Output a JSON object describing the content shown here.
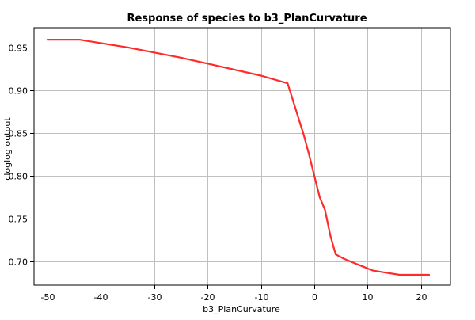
{
  "chart_data": {
    "type": "line",
    "title": "Response of species to b3_PlanCurvature",
    "xlabel": "b3_PlanCurvature",
    "ylabel": "cloglog output",
    "xlim": [
      -52.5,
      25.5
    ],
    "ylim": [
      0.672,
      0.973
    ],
    "x_ticks": [
      -50,
      -40,
      -30,
      -20,
      -10,
      0,
      10,
      20
    ],
    "y_ticks": [
      0.7,
      0.75,
      0.8,
      0.85,
      0.9,
      0.95
    ],
    "y_tick_labels": [
      "0.70",
      "0.75",
      "0.80",
      "0.85",
      "0.90",
      "0.95"
    ],
    "grid": true,
    "series": [
      {
        "color": "#ff2a2a",
        "x": [
          -50,
          -44,
          -40,
          -35,
          -30,
          -25,
          -20,
          -15,
          -10,
          -5,
          -4,
          -3,
          -2,
          -1,
          0,
          1,
          2,
          3,
          4,
          4.6,
          5.5,
          7,
          9,
          11,
          13,
          16,
          18,
          21.5
        ],
        "y": [
          0.959,
          0.959,
          0.955,
          0.95,
          0.944,
          0.938,
          0.931,
          0.924,
          0.917,
          0.908,
          0.888,
          0.868,
          0.848,
          0.825,
          0.8,
          0.775,
          0.76,
          0.73,
          0.708,
          0.706,
          0.703,
          0.699,
          0.694,
          0.689,
          0.687,
          0.684,
          0.684,
          0.684
        ]
      }
    ]
  }
}
